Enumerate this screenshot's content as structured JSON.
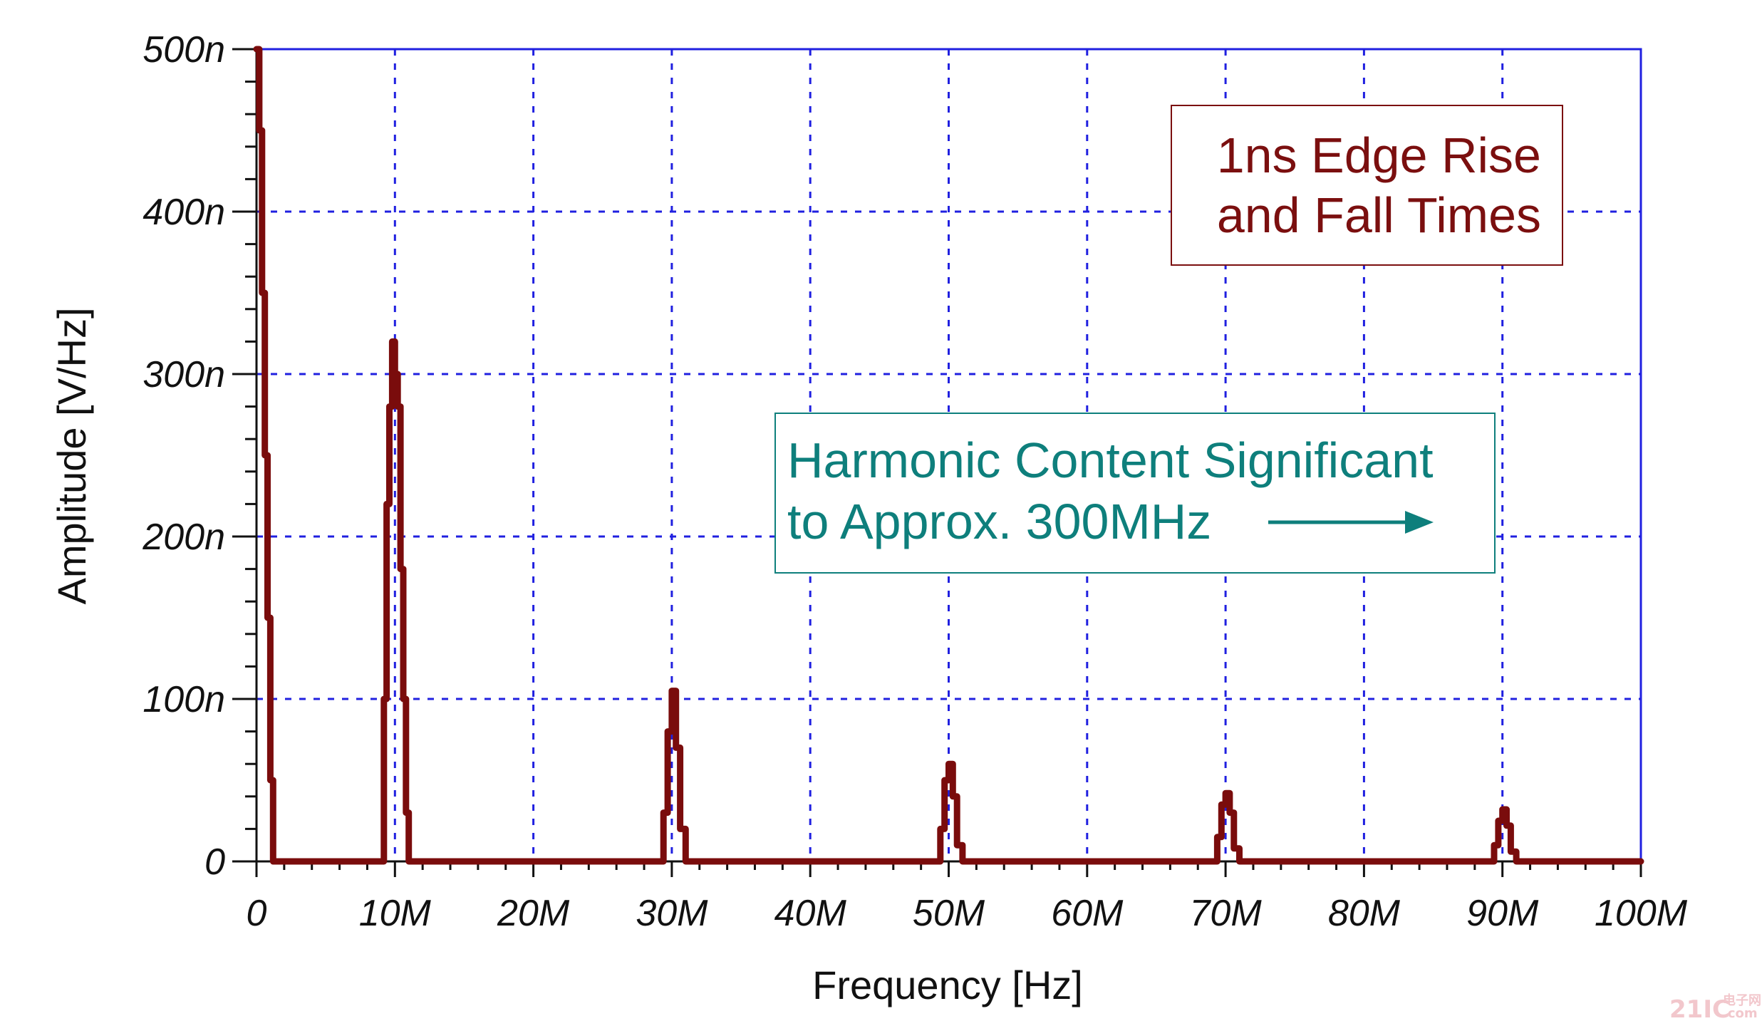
{
  "chart_data": {
    "type": "line",
    "xlabel": "Frequency [Hz]",
    "ylabel": "Amplitude [V/Hz]",
    "xlim": [
      0,
      100000000
    ],
    "ylim": [
      0,
      5e-07
    ],
    "grid": true,
    "x_ticks": [
      "0",
      "10M",
      "20M",
      "30M",
      "40M",
      "50M",
      "60M",
      "70M",
      "80M",
      "90M",
      "100M"
    ],
    "y_ticks": [
      "0",
      "100n",
      "200n",
      "300n",
      "400n",
      "500n"
    ],
    "series": [
      {
        "color": "#7a0c0c",
        "x": [
          0,
          200000,
          400000,
          600000,
          800000,
          1000000,
          1200000,
          9000000,
          9200000,
          9400000,
          9600000,
          9800000,
          10000000,
          10200000,
          10400000,
          10600000,
          10800000,
          11000000,
          29000000,
          29400000,
          29700000,
          30000000,
          30300000,
          30600000,
          31000000,
          49000000,
          49400000,
          49700000,
          50000000,
          50300000,
          50600000,
          51000000,
          69000000,
          69400000,
          69700000,
          70000000,
          70300000,
          70600000,
          71000000,
          89000000,
          89400000,
          89700000,
          90000000,
          90300000,
          90600000,
          91000000,
          100000000
        ],
        "y": [
          5e-07,
          4.5e-07,
          3.5e-07,
          2.5e-07,
          1.5e-07,
          5e-08,
          0,
          0,
          1e-07,
          2.2e-07,
          2.8e-07,
          3.2e-07,
          3e-07,
          2.8e-07,
          1.8e-07,
          1e-07,
          3e-08,
          0,
          0,
          3e-08,
          8e-08,
          1.05e-07,
          7e-08,
          2e-08,
          0,
          0,
          2e-08,
          5e-08,
          6e-08,
          4e-08,
          1e-08,
          0,
          0,
          1.5e-08,
          3.5e-08,
          4.2e-08,
          3e-08,
          8e-09,
          0,
          0,
          1e-08,
          2.5e-08,
          3.2e-08,
          2.2e-08,
          6e-09,
          0,
          0
        ]
      }
    ],
    "annotations": [
      {
        "lines": [
          "1ns Edge Rise",
          "and Fall Times"
        ],
        "color": "#7b0f0f",
        "position": "top-right"
      },
      {
        "lines": [
          "Harmonic Content Significant",
          "to Approx. 300MHz"
        ],
        "color": "#0e7f7c",
        "position": "center-right",
        "arrow": "right"
      }
    ],
    "colors": {
      "grid": "#2020e0",
      "frame": "#2020e0",
      "axis": "#111111",
      "trace": "#7a0c0c"
    }
  },
  "watermark": {
    "main": "21IC",
    "sub": "电子网",
    "sub2": ".com"
  }
}
